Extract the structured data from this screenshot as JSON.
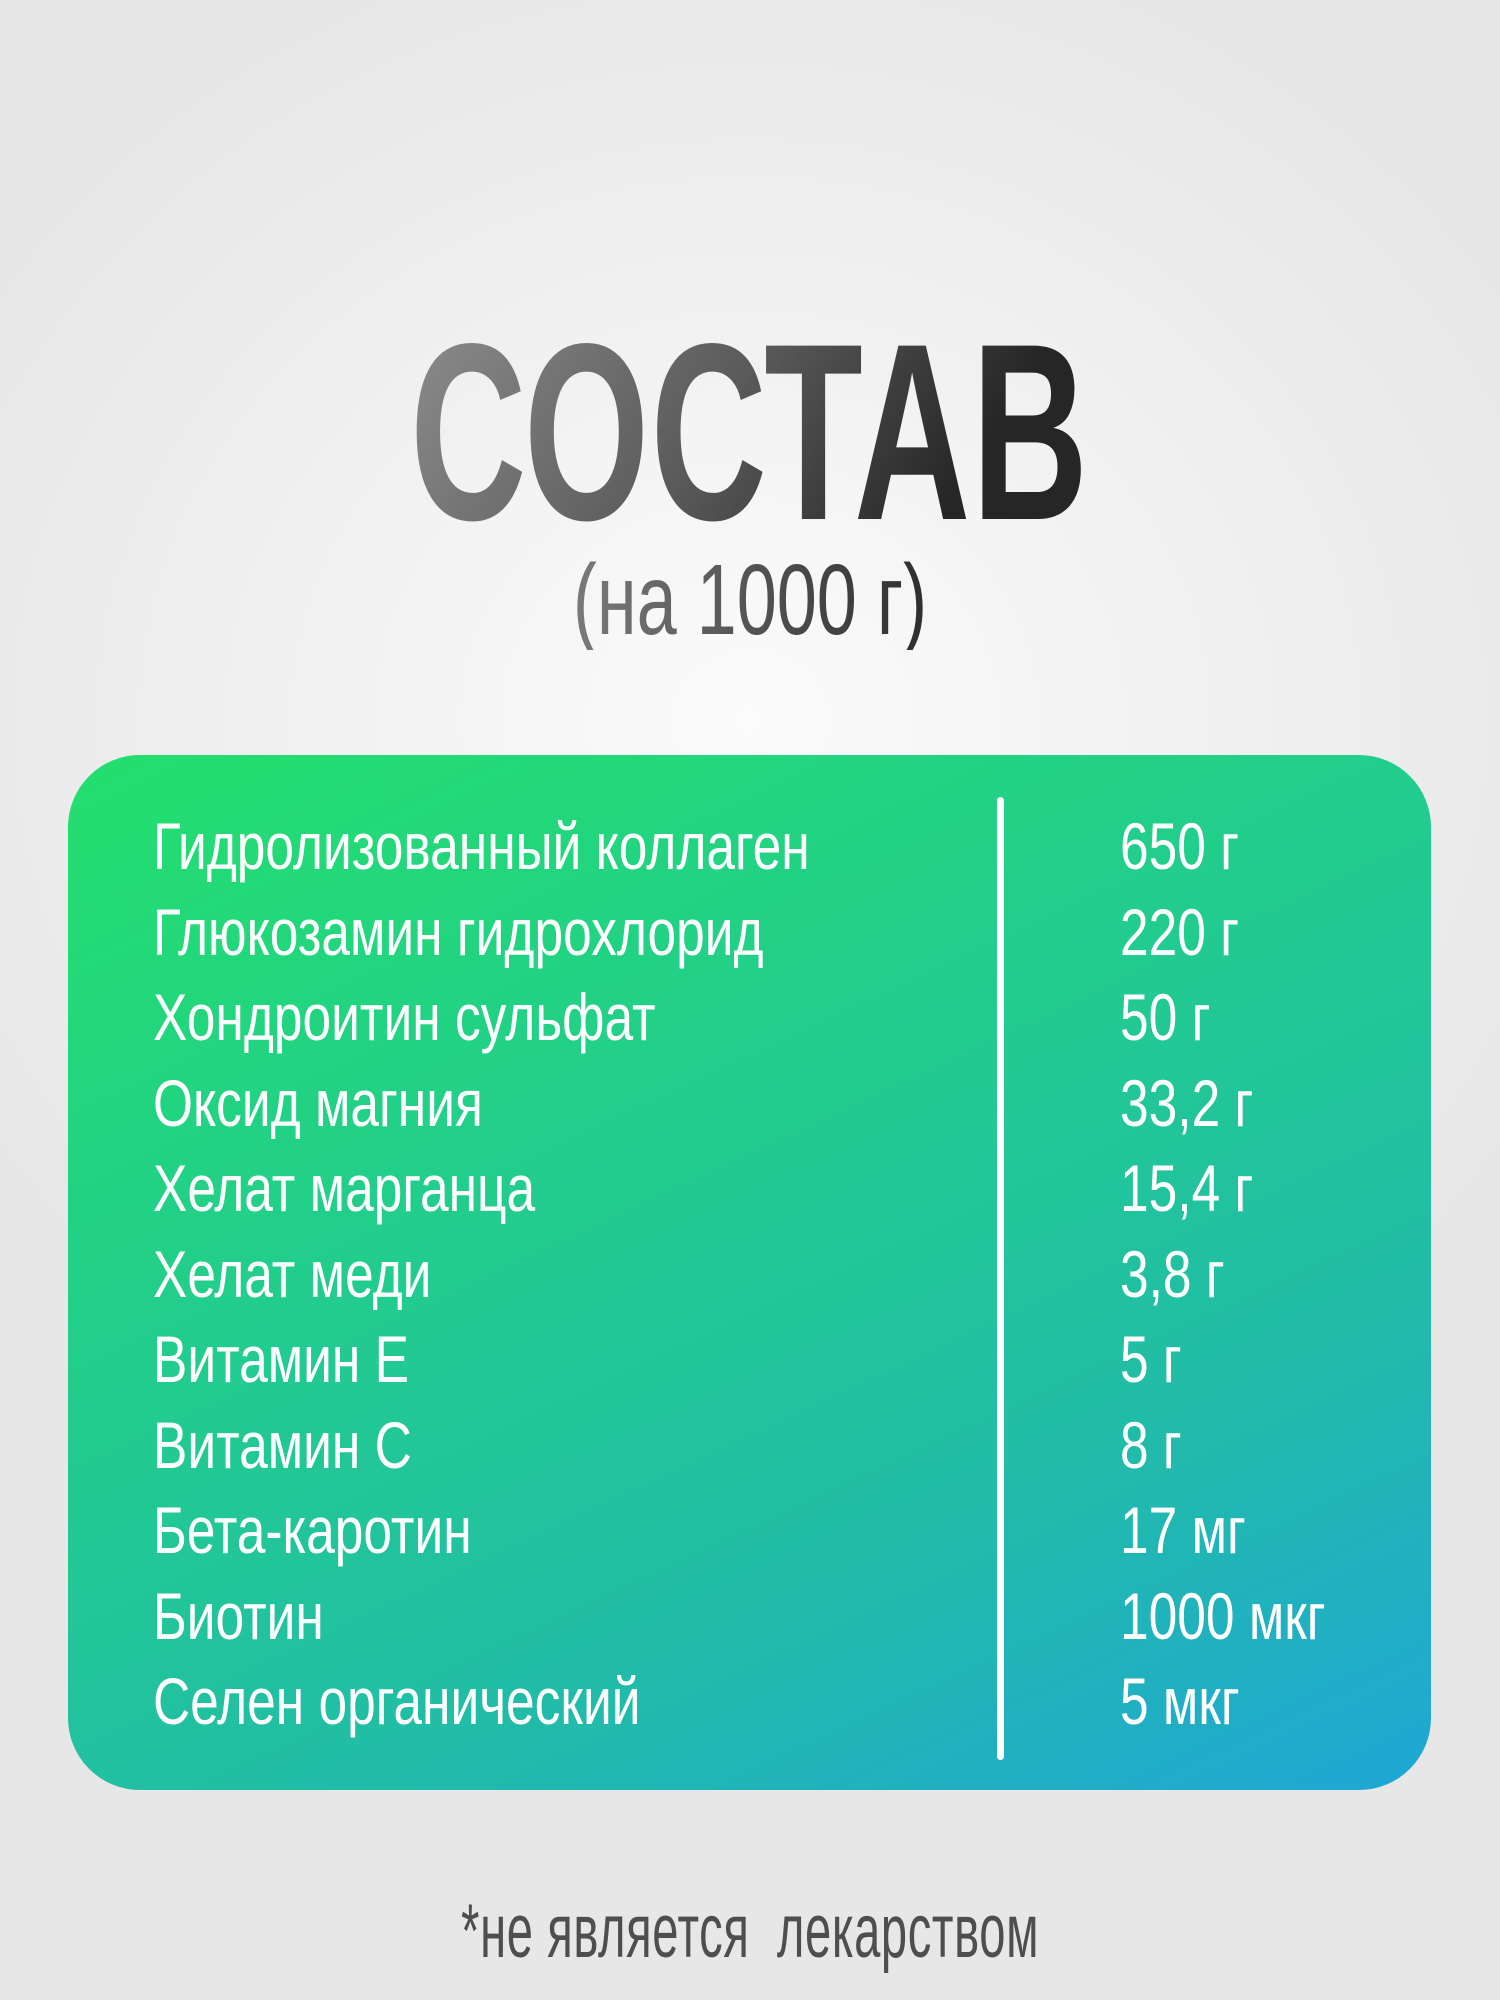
{
  "header": {
    "title": "СОСТАВ",
    "subtitle": "(на 1000 г)"
  },
  "colors": {
    "card_start": "#23df6d",
    "card_end": "#1fa6d6",
    "text_on_card": "#ffffff"
  },
  "ingredients": [
    {
      "name": "Гидролизованный коллаген",
      "amount": "650 г"
    },
    {
      "name": "Глюкозамин гидрохлорид",
      "amount": "220 г"
    },
    {
      "name": "Хондроитин сульфат",
      "amount": "50 г"
    },
    {
      "name": "Оксид магния",
      "amount": "33,2 г"
    },
    {
      "name": "Хелат марганца",
      "amount": "15,4 г"
    },
    {
      "name": "Хелат меди",
      "amount": "3,8 г"
    },
    {
      "name": "Витамин Е",
      "amount": "5 г"
    },
    {
      "name": "Витамин С",
      "amount": "8 г"
    },
    {
      "name": "Бета-каротин",
      "amount": "17 мг"
    },
    {
      "name": "Биотин",
      "amount": "1000 мкг"
    },
    {
      "name": "Селен органический",
      "amount": "5 мкг"
    }
  ],
  "footer": {
    "note": "*не является  лекарством"
  }
}
